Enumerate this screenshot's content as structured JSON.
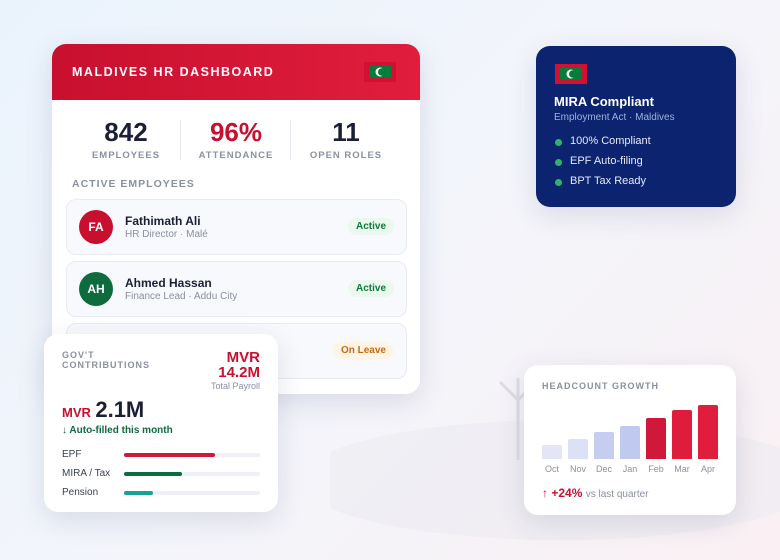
{
  "header": {
    "title": "MALDIVES HR DASHBOARD"
  },
  "stats": [
    {
      "value": "842",
      "label": "EMPLOYEES"
    },
    {
      "value": "96%",
      "label": "ATTENDANCE"
    },
    {
      "value": "11",
      "label": "OPEN ROLES"
    }
  ],
  "section_title": "ACTIVE EMPLOYEES",
  "employees": [
    {
      "initials": "FA",
      "name": "Fathimath Ali",
      "role": "HR Director · Malé",
      "status": "Active"
    },
    {
      "initials": "AH",
      "name": "Ahmed Hassan",
      "role": "Finance Lead · Addu City",
      "status": "Active"
    },
    {
      "status": "On Leave"
    }
  ],
  "compliance": {
    "title": "MIRA Compliant",
    "subtitle": "Employment Act · Maldives",
    "items": [
      "100% Compliant",
      "EPF Auto-filing",
      "BPT Tax Ready"
    ]
  },
  "contributions": {
    "title": "GOV'T CONTRIBUTIONS",
    "payroll_currency": "MVR",
    "payroll": "14.2M",
    "payroll_label": "Total Payroll",
    "currency": "MVR",
    "amount": "2.1M",
    "note": "↓ Auto-filled this month",
    "items": [
      {
        "name": "EPF",
        "value": 67,
        "color": "#d0183a"
      },
      {
        "name": "MIRA / Tax",
        "value": 43,
        "color": "#0e6b3e"
      },
      {
        "name": "Pension",
        "value": 21,
        "color": "#13a39a"
      }
    ]
  },
  "headcount": {
    "type": "bar",
    "title": "HEADCOUNT GROWTH",
    "categories": [
      "Oct",
      "Nov",
      "Dec",
      "Jan",
      "Feb",
      "Mar",
      "Apr"
    ],
    "values": [
      14,
      20,
      27,
      33,
      41,
      49,
      54
    ],
    "colors": [
      "#e4e6f6",
      "#dde1f6",
      "#c6cdf1",
      "#c0c9f0",
      "#d0183a",
      "#e01c3c",
      "#e11d3d"
    ],
    "change": "↑ +24%",
    "change_note": "vs last quarter"
  }
}
